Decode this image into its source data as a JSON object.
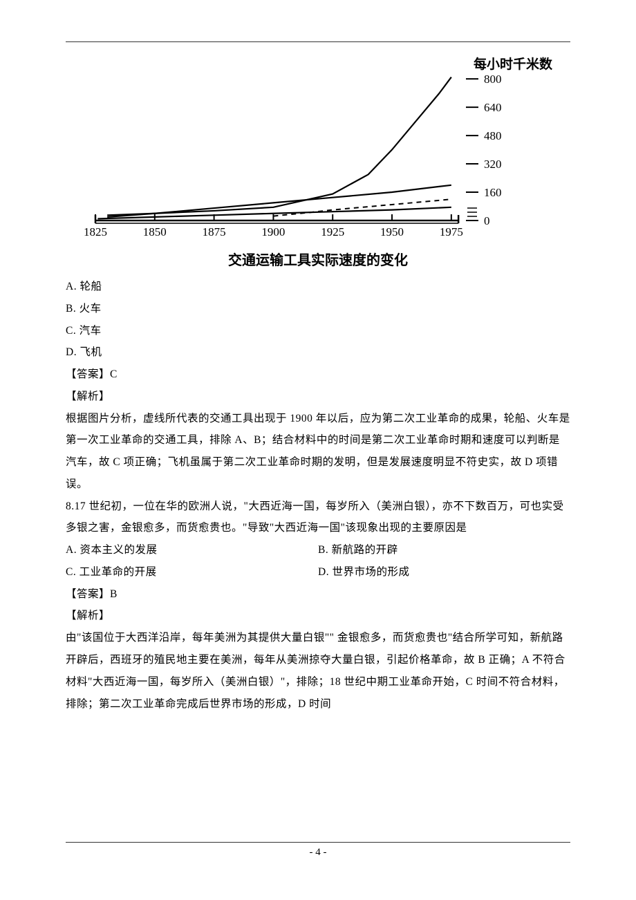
{
  "chart": {
    "type": "line",
    "caption": "交通运输工具实际速度的变化",
    "y_title": "每小时千米数",
    "x_ticks": [
      1825,
      1850,
      1875,
      1900,
      1925,
      1950,
      1975
    ],
    "y_ticks": [
      0,
      160,
      320,
      480,
      640,
      800
    ],
    "xlim": [
      1825,
      1980
    ],
    "ylim": [
      0,
      820
    ],
    "background_color": "#ffffff",
    "axis_color": "#000000",
    "label_fontsize": 19,
    "tick_fontsize": 17,
    "series": [
      {
        "name": "series-fast",
        "dash": "",
        "width": 2.2,
        "color": "#000000",
        "points": [
          [
            1830,
            30
          ],
          [
            1850,
            40
          ],
          [
            1875,
            55
          ],
          [
            1900,
            75
          ],
          [
            1925,
            150
          ],
          [
            1940,
            260
          ],
          [
            1950,
            400
          ],
          [
            1960,
            560
          ],
          [
            1970,
            720
          ],
          [
            1975,
            810
          ]
        ]
      },
      {
        "name": "series-mid",
        "dash": "",
        "width": 2.2,
        "color": "#000000",
        "points": [
          [
            1830,
            20
          ],
          [
            1850,
            40
          ],
          [
            1875,
            70
          ],
          [
            1900,
            100
          ],
          [
            1925,
            130
          ],
          [
            1950,
            160
          ],
          [
            1975,
            200
          ]
        ]
      },
      {
        "name": "series-dashed",
        "dash": "7,6",
        "width": 2,
        "color": "#000000",
        "points": [
          [
            1900,
            25
          ],
          [
            1915,
            45
          ],
          [
            1925,
            60
          ],
          [
            1950,
            90
          ],
          [
            1975,
            120
          ]
        ]
      },
      {
        "name": "series-base",
        "dash": "",
        "width": 2.2,
        "color": "#000000",
        "points": [
          [
            1826,
            10
          ],
          [
            1850,
            20
          ],
          [
            1875,
            30
          ],
          [
            1900,
            40
          ],
          [
            1925,
            50
          ],
          [
            1950,
            60
          ],
          [
            1975,
            75
          ]
        ]
      }
    ]
  },
  "q7": {
    "options": {
      "A": "A. 轮船",
      "B": "B. 火车",
      "C": "C. 汽车",
      "D": "D. 飞机"
    },
    "answer": "【答案】C",
    "explain_label": "【解析】",
    "explain_body": "根据图片分析，虚线所代表的交通工具出现于 1900 年以后，应为第二次工业革命的成果，轮船、火车是第一次工业革命的交通工具，排除 A、B；结合材料中的时间是第二次工业革命时期和速度可以判断是汽车，故 C 项正确；飞机虽属于第二次工业革命时期的发明，但是发展速度明显不符史实，故 D 项错误。"
  },
  "q8": {
    "stem": "8.17 世纪初，一位在华的欧洲人说，\"大西近海一国，每岁所入（美洲白银），亦不下数百万，可也实受多银之害，金银愈多，而货愈贵也。\"导致\"大西近海一国\"该现象出现的主要原因是",
    "options": {
      "A": "A. 资本主义的发展",
      "B": "B. 新航路的开辟",
      "C": "C. 工业革命的开展",
      "D": "D. 世界市场的形成"
    },
    "answer": "【答案】B",
    "explain_label": "【解析】",
    "explain_body": "由\"该国位于大西洋沿岸，每年美洲为其提供大量白银\"\" 金银愈多，而货愈贵也\"结合所学可知，新航路开辟后，西班牙的殖民地主要在美洲，每年从美洲掠夺大量白银，引起价格革命，故 B 正确；A 不符合材料\"大西近海一国，每岁所入（美洲白银）\"，排除；18 世纪中期工业革命开始，C 时间不符合材料，排除；第二次工业革命完成后世界市场的形成，D 时间"
  },
  "page_number": "- 4 -"
}
